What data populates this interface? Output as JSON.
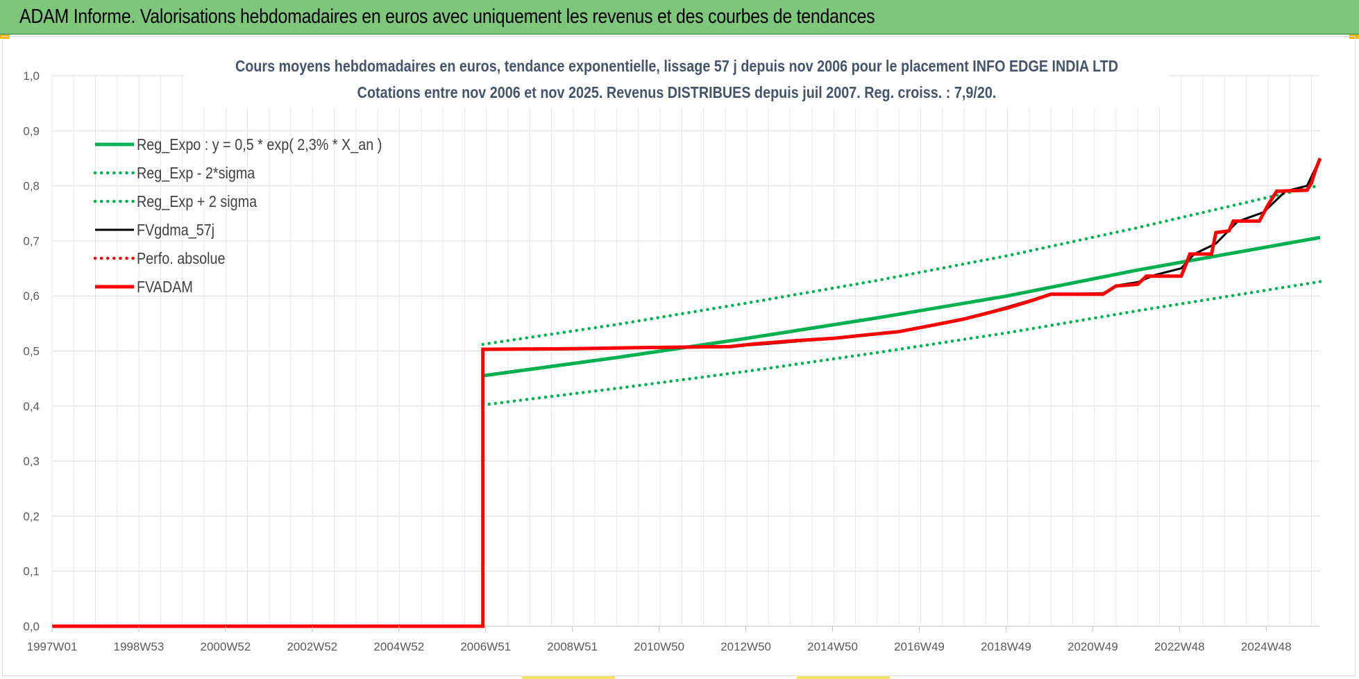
{
  "header": {
    "title": "ADAM Informe. Valorisations hebdomadaires en euros avec uniquement les revenus et des courbes de tendances"
  },
  "chart_data": {
    "type": "line",
    "title_line1": "Cours moyens hebdomadaires en euros, tendance exponentielle, lissage 57 j depuis nov 2006 pour le placement INFO EDGE INDIA LTD",
    "title_line2": "Cotations entre nov 2006 et nov 2025. Revenus DISTRIBUES depuis juil 2007. Reg. croiss. : 7,9/20.",
    "x_tick_labels": [
      "1997W01",
      "1998W53",
      "2000W52",
      "2002W52",
      "2004W52",
      "2006W51",
      "2008W51",
      "2010W50",
      "2012W50",
      "2014W50",
      "2016W49",
      "2018W49",
      "2020W49",
      "2022W48",
      "2024W48"
    ],
    "xlim": [
      1997.0,
      2026.2
    ],
    "y_tick_labels": [
      "0,0",
      "0,1",
      "0,2",
      "0,3",
      "0,4",
      "0,5",
      "0,6",
      "0,7",
      "0,8",
      "0,9",
      "1,0"
    ],
    "ylim": [
      0,
      1.0
    ],
    "grid": true,
    "legend_position": "top-left",
    "colors": {
      "green": "#00b050",
      "black": "#000000",
      "red": "#ff0000"
    },
    "series": [
      {
        "name": "Reg_Expo : y = 0,5 * exp( 2,3% *  X_an )",
        "style": "solid",
        "color": "#00b050",
        "points": [
          [
            2006.92,
            0.455
          ],
          [
            2010,
            0.488
          ],
          [
            2013,
            0.523
          ],
          [
            2016,
            0.56
          ],
          [
            2019,
            0.6
          ],
          [
            2022,
            0.647
          ],
          [
            2026.2,
            0.706
          ]
        ]
      },
      {
        "name": "Reg_Exp - 2*sigma",
        "style": "dotted",
        "color": "#00b050",
        "points": [
          [
            2006.92,
            0.402
          ],
          [
            2010,
            0.432
          ],
          [
            2013,
            0.463
          ],
          [
            2016,
            0.497
          ],
          [
            2019,
            0.533
          ],
          [
            2022,
            0.573
          ],
          [
            2026.2,
            0.626
          ]
        ]
      },
      {
        "name": "Reg_Exp + 2 sigma",
        "style": "dotted",
        "color": "#00b050",
        "points": [
          [
            2006.92,
            0.512
          ],
          [
            2010,
            0.548
          ],
          [
            2013,
            0.587
          ],
          [
            2016,
            0.628
          ],
          [
            2019,
            0.673
          ],
          [
            2022,
            0.724
          ],
          [
            2026.2,
            0.801
          ]
        ]
      },
      {
        "name": "FVgdma_57j",
        "style": "solid-thin",
        "color": "#000000",
        "points": [
          [
            2006.92,
            0.503
          ],
          [
            2010.5,
            0.506
          ],
          [
            2012.6,
            0.508
          ],
          [
            2013.5,
            0.513
          ],
          [
            2015,
            0.523
          ],
          [
            2016.5,
            0.535
          ],
          [
            2018,
            0.558
          ],
          [
            2019,
            0.58
          ],
          [
            2020,
            0.603
          ],
          [
            2021.2,
            0.605
          ],
          [
            2021.6,
            0.62
          ],
          [
            2022.0,
            0.625
          ],
          [
            2022.4,
            0.638
          ],
          [
            2023,
            0.65
          ],
          [
            2023.3,
            0.676
          ],
          [
            2023.8,
            0.695
          ],
          [
            2024.3,
            0.735
          ],
          [
            2024.9,
            0.752
          ],
          [
            2025.4,
            0.79
          ],
          [
            2025.9,
            0.8
          ],
          [
            2026.2,
            0.85
          ]
        ]
      },
      {
        "name": "Perfo. absolue",
        "style": "dotted",
        "color": "#ff0000",
        "points": []
      },
      {
        "name": "FVADAM",
        "style": "solid",
        "color": "#ff0000",
        "points": [
          [
            1997.0,
            0.0
          ],
          [
            2006.92,
            0.0
          ],
          [
            2006.92,
            0.503
          ],
          [
            2009,
            0.504
          ],
          [
            2010.5,
            0.506
          ],
          [
            2012.6,
            0.508
          ],
          [
            2013.2,
            0.513
          ],
          [
            2014.0,
            0.518
          ],
          [
            2015.0,
            0.523
          ],
          [
            2015.6,
            0.528
          ],
          [
            2016.5,
            0.535
          ],
          [
            2017.3,
            0.547
          ],
          [
            2018.0,
            0.558
          ],
          [
            2018.5,
            0.568
          ],
          [
            2019.0,
            0.578
          ],
          [
            2019.5,
            0.59
          ],
          [
            2020.0,
            0.603
          ],
          [
            2021.2,
            0.603
          ],
          [
            2021.5,
            0.618
          ],
          [
            2022.0,
            0.621
          ],
          [
            2022.2,
            0.636
          ],
          [
            2023.0,
            0.636
          ],
          [
            2023.1,
            0.655
          ],
          [
            2023.2,
            0.676
          ],
          [
            2023.7,
            0.676
          ],
          [
            2023.8,
            0.715
          ],
          [
            2024.1,
            0.718
          ],
          [
            2024.2,
            0.736
          ],
          [
            2024.8,
            0.736
          ],
          [
            2025.0,
            0.765
          ],
          [
            2025.2,
            0.79
          ],
          [
            2025.9,
            0.792
          ],
          [
            2026.0,
            0.805
          ],
          [
            2026.1,
            0.83
          ],
          [
            2026.2,
            0.85
          ]
        ]
      }
    ]
  }
}
